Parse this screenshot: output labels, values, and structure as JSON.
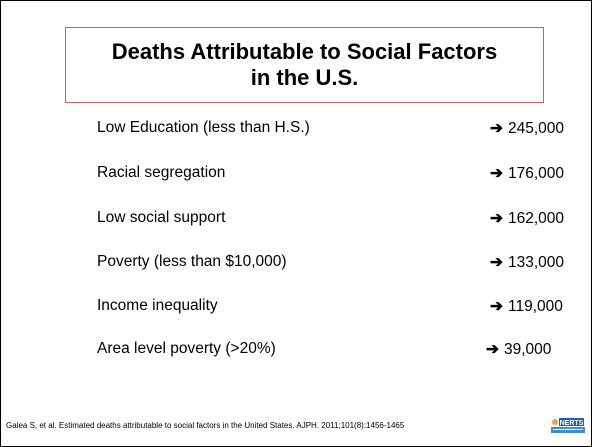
{
  "title": {
    "line1": "Deaths Attributable to Social Factors",
    "line2": "in the U.S."
  },
  "arrow_glyph": "➔",
  "rows": [
    {
      "label": "Low Education (less than H.S.)",
      "value": "245,000"
    },
    {
      "label": "Racial segregation",
      "value": "176,000"
    },
    {
      "label": "Low social support",
      "value": "162,000"
    },
    {
      "label": "Poverty (less than $10,000)",
      "value": "133,000"
    },
    {
      "label": "Income inequality",
      "value": "119,000"
    },
    {
      "label": "Area level poverty (>20%)",
      "value": "39,000"
    }
  ],
  "citation": "Galea S, et al. Estimated deaths attributable to social factors in the United States. AJPH. 2011;101(8):1456-1465",
  "logo": {
    "icon": "organization-logo",
    "text": "NERTS",
    "colors": [
      "#1f5fb0",
      "#e8a33a",
      "#3a8fd0"
    ]
  }
}
